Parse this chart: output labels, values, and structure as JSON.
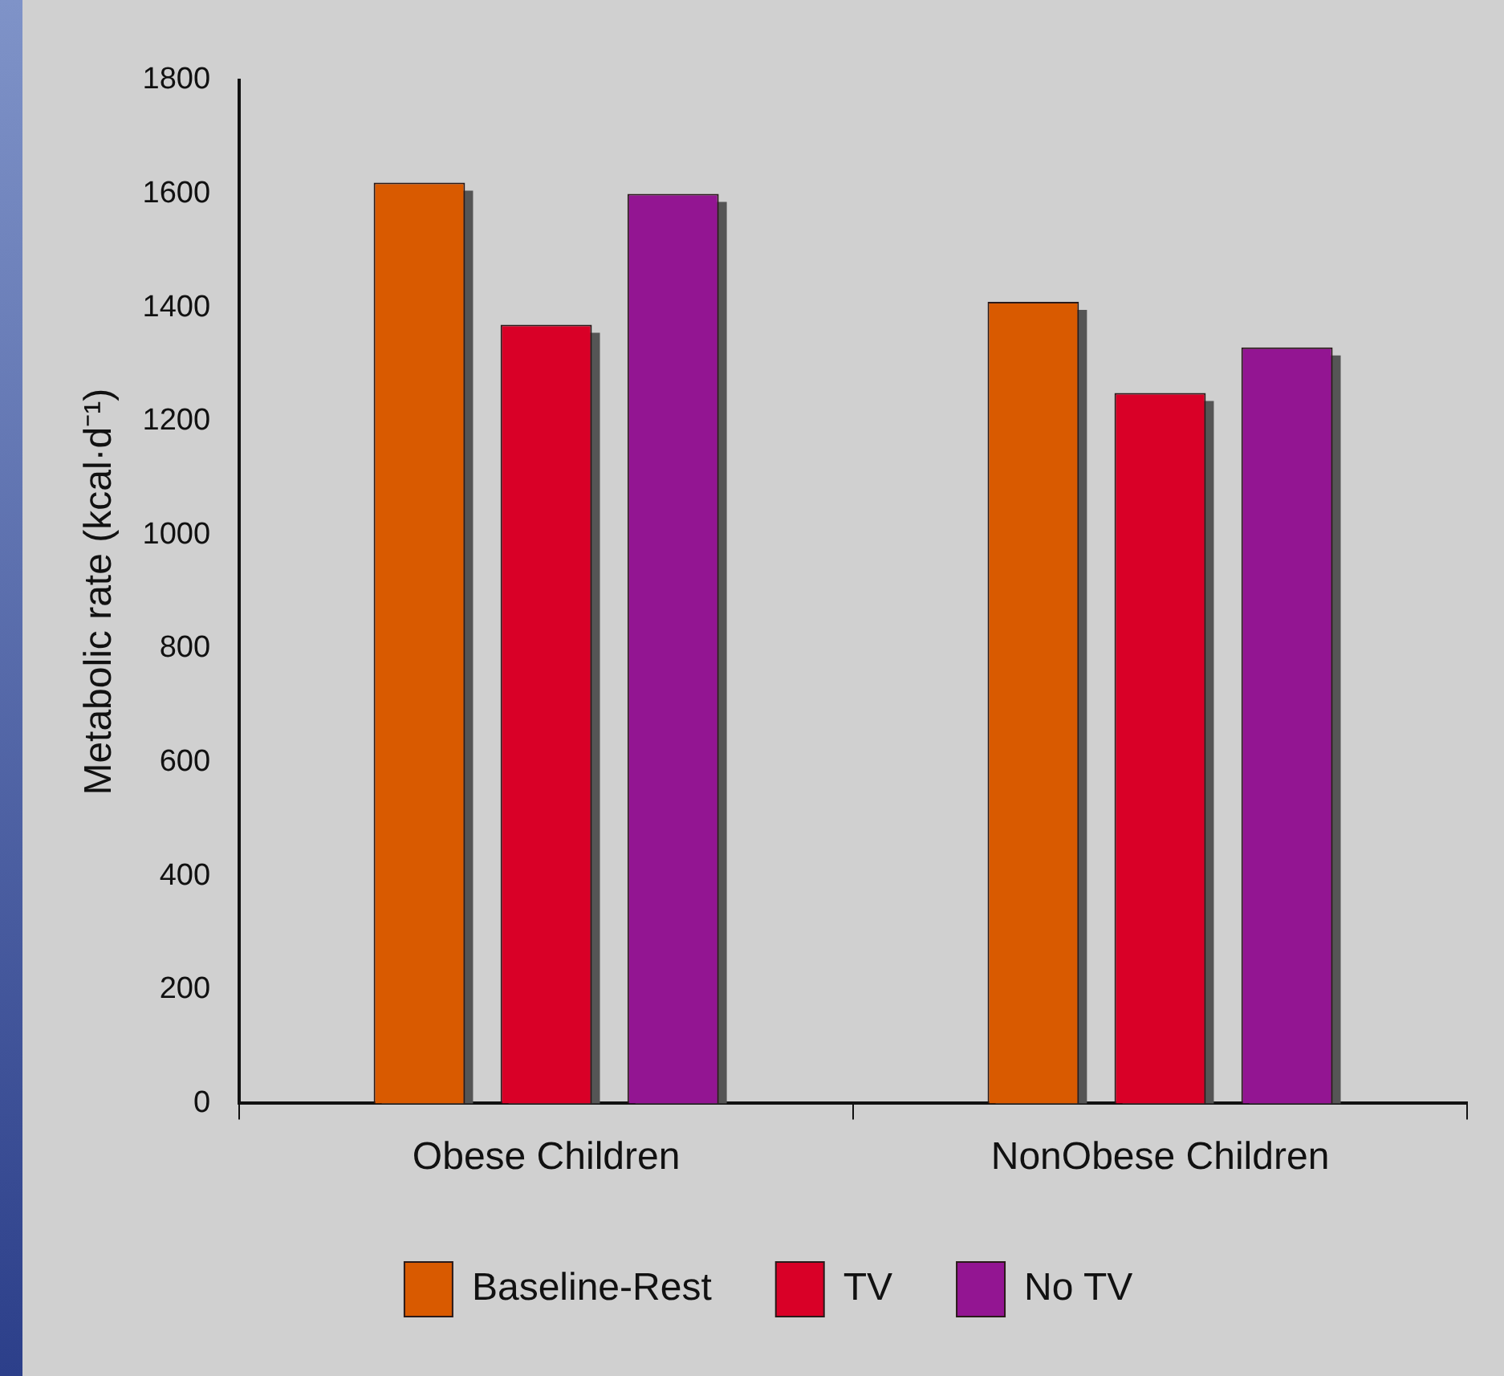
{
  "chart_data": {
    "type": "bar",
    "ylabel": "Metabolic rate (kcal·d⁻¹)",
    "categories": [
      "Obese Children",
      "NonObese Children"
    ],
    "series": [
      {
        "name": "Baseline-Rest",
        "color": "#d95a00",
        "values": [
          1620,
          1410
        ]
      },
      {
        "name": "TV",
        "color": "#d90027",
        "values": [
          1370,
          1250
        ]
      },
      {
        "name": "No TV",
        "color": "#931592",
        "values": [
          1600,
          1330
        ]
      }
    ],
    "ylim": [
      0,
      1800
    ],
    "yticks": [
      0,
      200,
      400,
      600,
      800,
      1000,
      1200,
      1400,
      1600,
      1800
    ],
    "grid": false,
    "legend": "bottom"
  }
}
